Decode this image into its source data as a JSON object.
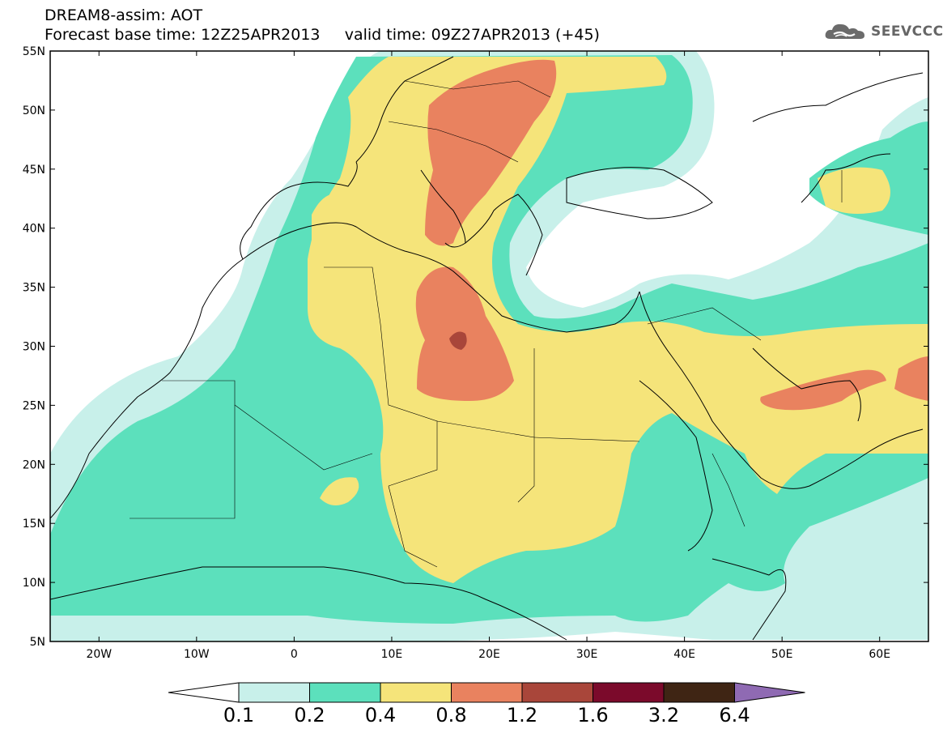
{
  "header": {
    "title_line1": "DREAM8-assim: AOT",
    "title_line2": "Forecast base time: 12Z25APR2013     valid time: 09Z27APR2013 (+45)"
  },
  "logo": {
    "text": "SEEVCCC",
    "icon": "cloud-logo-icon"
  },
  "map": {
    "lat_labels": [
      "55N",
      "50N",
      "45N",
      "40N",
      "35N",
      "30N",
      "25N",
      "20N",
      "15N",
      "10N",
      "5N"
    ],
    "lon_labels": [
      "20W",
      "10W",
      "0",
      "10E",
      "20E",
      "30E",
      "40E",
      "50E",
      "60E"
    ],
    "lat_range": [
      5,
      55
    ],
    "lon_range": [
      -25,
      65
    ]
  },
  "colorbar": {
    "levels": [
      "0.1",
      "0.2",
      "0.4",
      "0.8",
      "1.2",
      "1.6",
      "3.2",
      "6.4"
    ],
    "colors": [
      "#ffffff",
      "#c8f0ea",
      "#5ce0bc",
      "#f5e47a",
      "#e9825f",
      "#a9463a",
      "#7b0a2b",
      "#3f2514",
      "#8f6ab3"
    ]
  }
}
